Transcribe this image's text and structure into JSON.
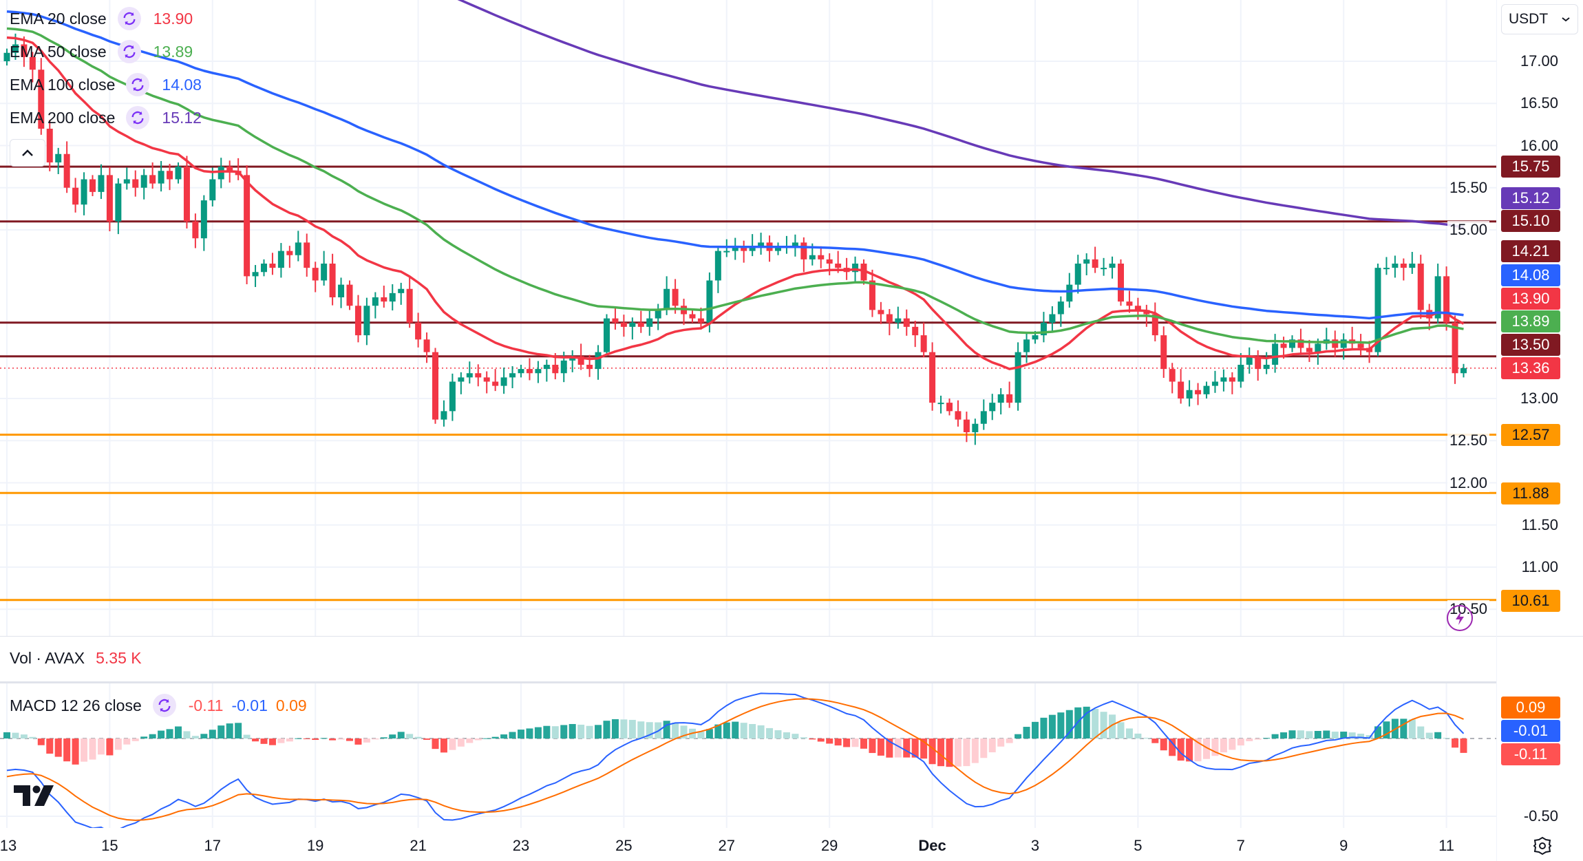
{
  "legend": {
    "emas": [
      {
        "label": "EMA 20 close",
        "value": "13.90",
        "color": "#f23645",
        "period": 20,
        "seed": 17.3
      },
      {
        "label": "EMA 50 close",
        "value": "13.89",
        "color": "#4caf50",
        "period": 50,
        "seed": 17.4
      },
      {
        "label": "EMA 100 close",
        "value": "14.08",
        "color": "#2962ff",
        "period": 100,
        "seed": 17.6
      },
      {
        "label": "EMA 200 close",
        "value": "15.12",
        "color": "#673ab7",
        "period": 200,
        "seed": 19.8
      }
    ],
    "volume": {
      "label": "Vol · AVAX",
      "value": "5.35 K"
    },
    "macd": {
      "label": "MACD 12 26 close",
      "hist": "-0.11",
      "macd": "-0.01",
      "signal": "0.09"
    }
  },
  "currency_select": {
    "value": "USDT"
  },
  "price_axis": {
    "ticks": [
      "17.00",
      "16.50",
      "16.00",
      "15.50",
      "15.00",
      "13.00",
      "12.50",
      "12.00",
      "11.50",
      "11.00",
      "10.50"
    ],
    "badges": [
      {
        "value": "15.75",
        "bg": "#801922"
      },
      {
        "value": "15.12",
        "bg": "#673ab7"
      },
      {
        "value": "15.10",
        "bg": "#801922"
      },
      {
        "value": "14.21",
        "bg": "#801922"
      },
      {
        "value": "14.08",
        "bg": "#2962ff"
      },
      {
        "value": "13.90",
        "bg": "#f23645"
      },
      {
        "value": "13.89",
        "bg": "#4caf50"
      },
      {
        "value": "13.50",
        "bg": "#801922"
      },
      {
        "value": "13.36",
        "bg": "#f23645"
      },
      {
        "value": "12.57",
        "bg": "#ff9800"
      },
      {
        "value": "11.88",
        "bg": "#ff9800"
      },
      {
        "value": "10.61",
        "bg": "#ff9800"
      }
    ]
  },
  "macd_axis": {
    "ticks": [
      "-0.50"
    ],
    "badges": [
      {
        "value": "0.09",
        "bg": "#ff6d00"
      },
      {
        "value": "-0.01",
        "bg": "#2962ff"
      },
      {
        "value": "-0.11",
        "bg": "#ff5252"
      }
    ]
  },
  "time_axis": {
    "labels": [
      {
        "text": "13",
        "day": 0
      },
      {
        "text": "15",
        "day": 2
      },
      {
        "text": "17",
        "day": 4
      },
      {
        "text": "19",
        "day": 6
      },
      {
        "text": "21",
        "day": 8
      },
      {
        "text": "23",
        "day": 10
      },
      {
        "text": "25",
        "day": 12
      },
      {
        "text": "27",
        "day": 14
      },
      {
        "text": "29",
        "day": 16
      },
      {
        "text": "Dec",
        "day": 18
      },
      {
        "text": "3",
        "day": 20
      },
      {
        "text": "5",
        "day": 22
      },
      {
        "text": "7",
        "day": 24
      },
      {
        "text": "9",
        "day": 26
      },
      {
        "text": "11",
        "day": 28
      }
    ]
  },
  "chart_data": {
    "type": "candlestick",
    "symbol": "AVAX/USDT",
    "interval_hours": 4,
    "ylim": [
      10.3,
      17.6
    ],
    "levels": {
      "resistance": [
        15.75,
        15.1,
        13.9,
        13.5
      ],
      "support": [
        12.57,
        11.88,
        10.61
      ],
      "last_price": 13.36
    },
    "closes": [
      17.1,
      17.2,
      17.05,
      16.9,
      16.2,
      15.8,
      15.9,
      15.5,
      15.3,
      15.6,
      15.45,
      15.65,
      15.1,
      15.55,
      15.6,
      15.5,
      15.65,
      15.55,
      15.7,
      15.6,
      15.75,
      15.1,
      14.9,
      15.35,
      15.6,
      15.75,
      15.7,
      15.65,
      14.45,
      14.5,
      14.6,
      14.55,
      14.75,
      14.7,
      14.85,
      14.55,
      14.4,
      14.6,
      14.2,
      14.35,
      14.1,
      13.75,
      14.1,
      14.2,
      14.15,
      14.25,
      14.3,
      13.9,
      13.7,
      13.55,
      12.75,
      12.85,
      13.2,
      13.25,
      13.3,
      13.25,
      13.2,
      13.15,
      13.25,
      13.3,
      13.35,
      13.3,
      13.35,
      13.4,
      13.3,
      13.45,
      13.5,
      13.4,
      13.35,
      13.55,
      13.95,
      13.9,
      13.85,
      13.9,
      13.85,
      13.95,
      14.05,
      14.3,
      14.1,
      14.0,
      13.95,
      13.9,
      14.4,
      14.75,
      14.75,
      14.8,
      14.75,
      14.8,
      14.85,
      14.75,
      14.8,
      14.8,
      14.85,
      14.65,
      14.7,
      14.65,
      14.6,
      14.55,
      14.5,
      14.6,
      14.4,
      14.05,
      14.0,
      13.9,
      13.95,
      13.85,
      13.75,
      13.55,
      12.95,
      12.95,
      12.85,
      12.75,
      12.6,
      12.7,
      12.85,
      12.95,
      13.05,
      12.95,
      13.55,
      13.7,
      13.75,
      13.9,
      14.0,
      14.15,
      14.35,
      14.6,
      14.65,
      14.55,
      14.55,
      14.6,
      14.15,
      14.1,
      14.05,
      14.0,
      13.75,
      13.35,
      13.2,
      13.0,
      13.1,
      13.05,
      13.15,
      13.2,
      13.25,
      13.2,
      13.4,
      13.5,
      13.35,
      13.4,
      13.65,
      13.6,
      13.7,
      13.6,
      13.55,
      13.65,
      13.7,
      13.6,
      13.7,
      13.65,
      13.6,
      13.55,
      14.55,
      14.55,
      14.6,
      14.55,
      14.6,
      14.05,
      13.95,
      14.45,
      13.9,
      13.3,
      13.36
    ],
    "first_open": 17.0,
    "colors": {
      "up": "#089981",
      "down": "#f23645",
      "resistance": "#801922",
      "support": "#ff9800",
      "macd": "#2962ff",
      "signal": "#ff6d00"
    }
  }
}
